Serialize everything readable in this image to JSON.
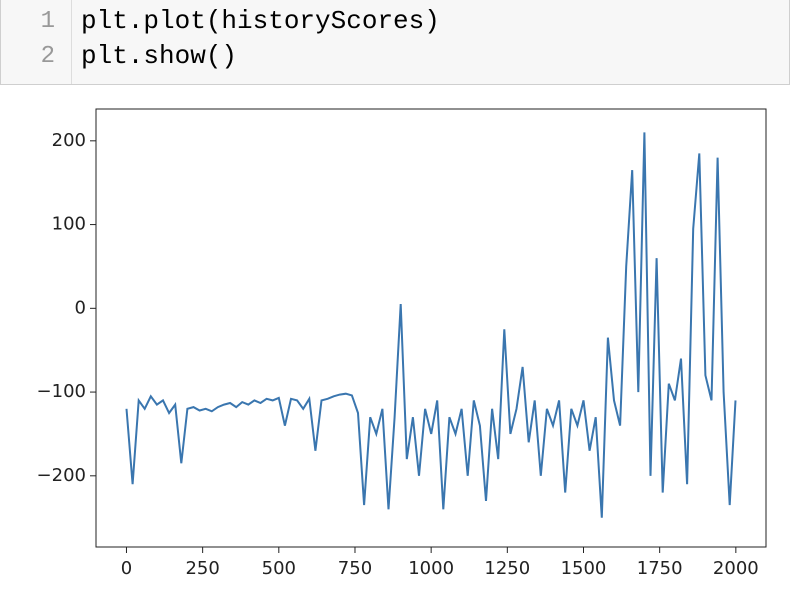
{
  "code": {
    "line_numbers": [
      "1",
      "2"
    ],
    "lines": [
      "plt.plot(historyScores)",
      "plt.show()"
    ]
  },
  "chart_data": {
    "type": "line",
    "x": [
      0,
      20,
      40,
      60,
      80,
      100,
      120,
      140,
      160,
      180,
      200,
      220,
      240,
      260,
      280,
      300,
      320,
      340,
      360,
      380,
      400,
      420,
      440,
      460,
      480,
      500,
      520,
      540,
      560,
      580,
      600,
      620,
      640,
      660,
      680,
      700,
      720,
      740,
      760,
      780,
      800,
      820,
      840,
      860,
      880,
      900,
      920,
      940,
      960,
      980,
      1000,
      1020,
      1040,
      1060,
      1080,
      1100,
      1120,
      1140,
      1160,
      1180,
      1200,
      1220,
      1240,
      1260,
      1280,
      1300,
      1320,
      1340,
      1360,
      1380,
      1400,
      1420,
      1440,
      1460,
      1480,
      1500,
      1520,
      1540,
      1560,
      1580,
      1600,
      1620,
      1640,
      1660,
      1680,
      1700,
      1720,
      1740,
      1760,
      1780,
      1800,
      1820,
      1840,
      1860,
      1880,
      1900,
      1920,
      1940,
      1960,
      1980,
      1999
    ],
    "series": [
      {
        "color": "#3a76af",
        "values": [
          -120,
          -210,
          -110,
          -120,
          -105,
          -115,
          -110,
          -125,
          -115,
          -185,
          -120,
          -118,
          -122,
          -120,
          -123,
          -118,
          -115,
          -113,
          -118,
          -112,
          -115,
          -110,
          -113,
          -108,
          -110,
          -107,
          -140,
          -108,
          -110,
          -120,
          -108,
          -170,
          -110,
          -108,
          -105,
          -103,
          -102,
          -104,
          -125,
          -235,
          -130,
          -150,
          -120,
          -240,
          -130,
          5,
          -180,
          -130,
          -200,
          -120,
          -150,
          -110,
          -240,
          -130,
          -150,
          -120,
          -200,
          -110,
          -140,
          -230,
          -120,
          -180,
          -25,
          -150,
          -120,
          -70,
          -160,
          -110,
          -200,
          -120,
          -140,
          -110,
          -220,
          -120,
          -140,
          -110,
          -170,
          -130,
          -250,
          -35,
          -110,
          -140,
          50,
          165,
          -100,
          210,
          -200,
          60,
          -220,
          -90,
          -110,
          -60,
          -210,
          95,
          185,
          -80,
          -110,
          180,
          -100,
          -235,
          -110
        ]
      }
    ],
    "xlim": [
      -100,
      2099
    ],
    "ylim": [
      -285,
      238
    ],
    "xticks": [
      0,
      250,
      500,
      750,
      1000,
      1250,
      1500,
      1750,
      2000
    ],
    "yticks": [
      {
        "value": -200,
        "label": "−200"
      },
      {
        "value": -100,
        "label": "−100"
      },
      0,
      100,
      200
    ]
  }
}
